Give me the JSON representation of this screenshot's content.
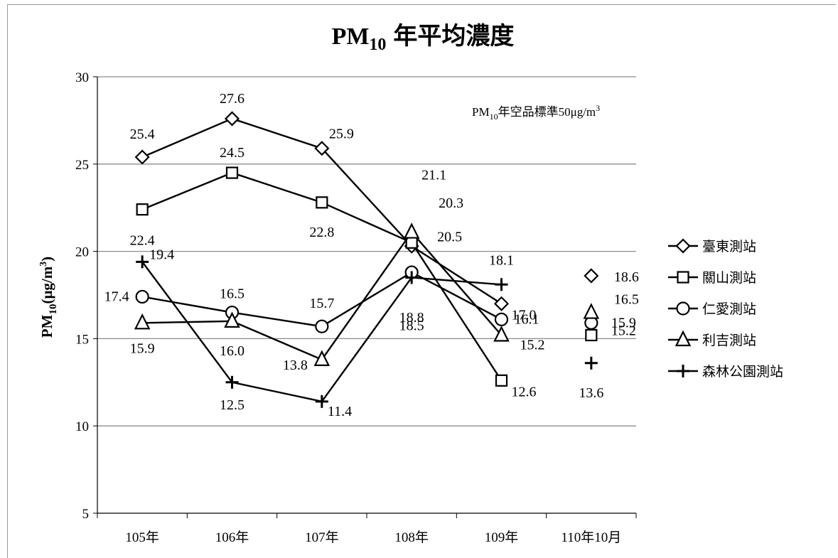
{
  "chart_data": {
    "type": "line",
    "title": "PM₁₀ 年平均濃度",
    "title_main": "PM",
    "title_sub": "10",
    "title_rest": "年平均濃度",
    "ylabel": "PM₁₀(μg/m³)",
    "ylabel_parts": {
      "main": "PM",
      "sub": "10",
      "mid": "(μg/m",
      "sup": "3",
      "end": ")"
    },
    "annotation": "PM₁₀年空品標準50μg/m³",
    "annotation_parts": {
      "a": "PM",
      "sub": "10",
      "b": "年空品標準50μg/m",
      "sup": "3"
    },
    "categories": [
      "105年",
      "106年",
      "107年",
      "108年",
      "109年",
      "110年10月"
    ],
    "ylim": [
      5,
      30
    ],
    "yticks": [
      5,
      10,
      15,
      20,
      25,
      30
    ],
    "grid": true,
    "legend_position": "right",
    "series": [
      {
        "name": "臺東測站",
        "marker": "diamond",
        "values": [
          25.4,
          27.6,
          25.9,
          20.3,
          17.0,
          18.6
        ],
        "labels": [
          "25.4",
          "27.6",
          "25.9",
          "20.3",
          "17.0",
          "18.6"
        ]
      },
      {
        "name": "關山測站",
        "marker": "square",
        "values": [
          22.4,
          24.5,
          22.8,
          20.5,
          12.6,
          15.2
        ],
        "labels": [
          "22.4",
          "24.5",
          "22.8",
          "20.5",
          "12.6",
          "15.2"
        ]
      },
      {
        "name": "仁愛測站",
        "marker": "circle",
        "values": [
          17.4,
          16.5,
          15.7,
          18.8,
          16.1,
          15.9
        ],
        "labels": [
          "17.4",
          "16.5",
          "15.7",
          "18.8",
          "16.1",
          "15.9"
        ]
      },
      {
        "name": "利吉測站",
        "marker": "triangle",
        "values": [
          15.9,
          16.0,
          13.8,
          21.1,
          15.2,
          16.5
        ],
        "labels": [
          "15.9",
          "16.0",
          "13.8",
          "21.1",
          "15.2",
          "16.5"
        ]
      },
      {
        "name": "森林公園測站",
        "marker": "plus",
        "values": [
          19.4,
          12.5,
          11.4,
          18.5,
          18.1,
          13.6
        ],
        "labels": [
          "19.4",
          "12.5",
          "11.4",
          "18.5",
          "18.1",
          "13.6"
        ]
      }
    ]
  }
}
